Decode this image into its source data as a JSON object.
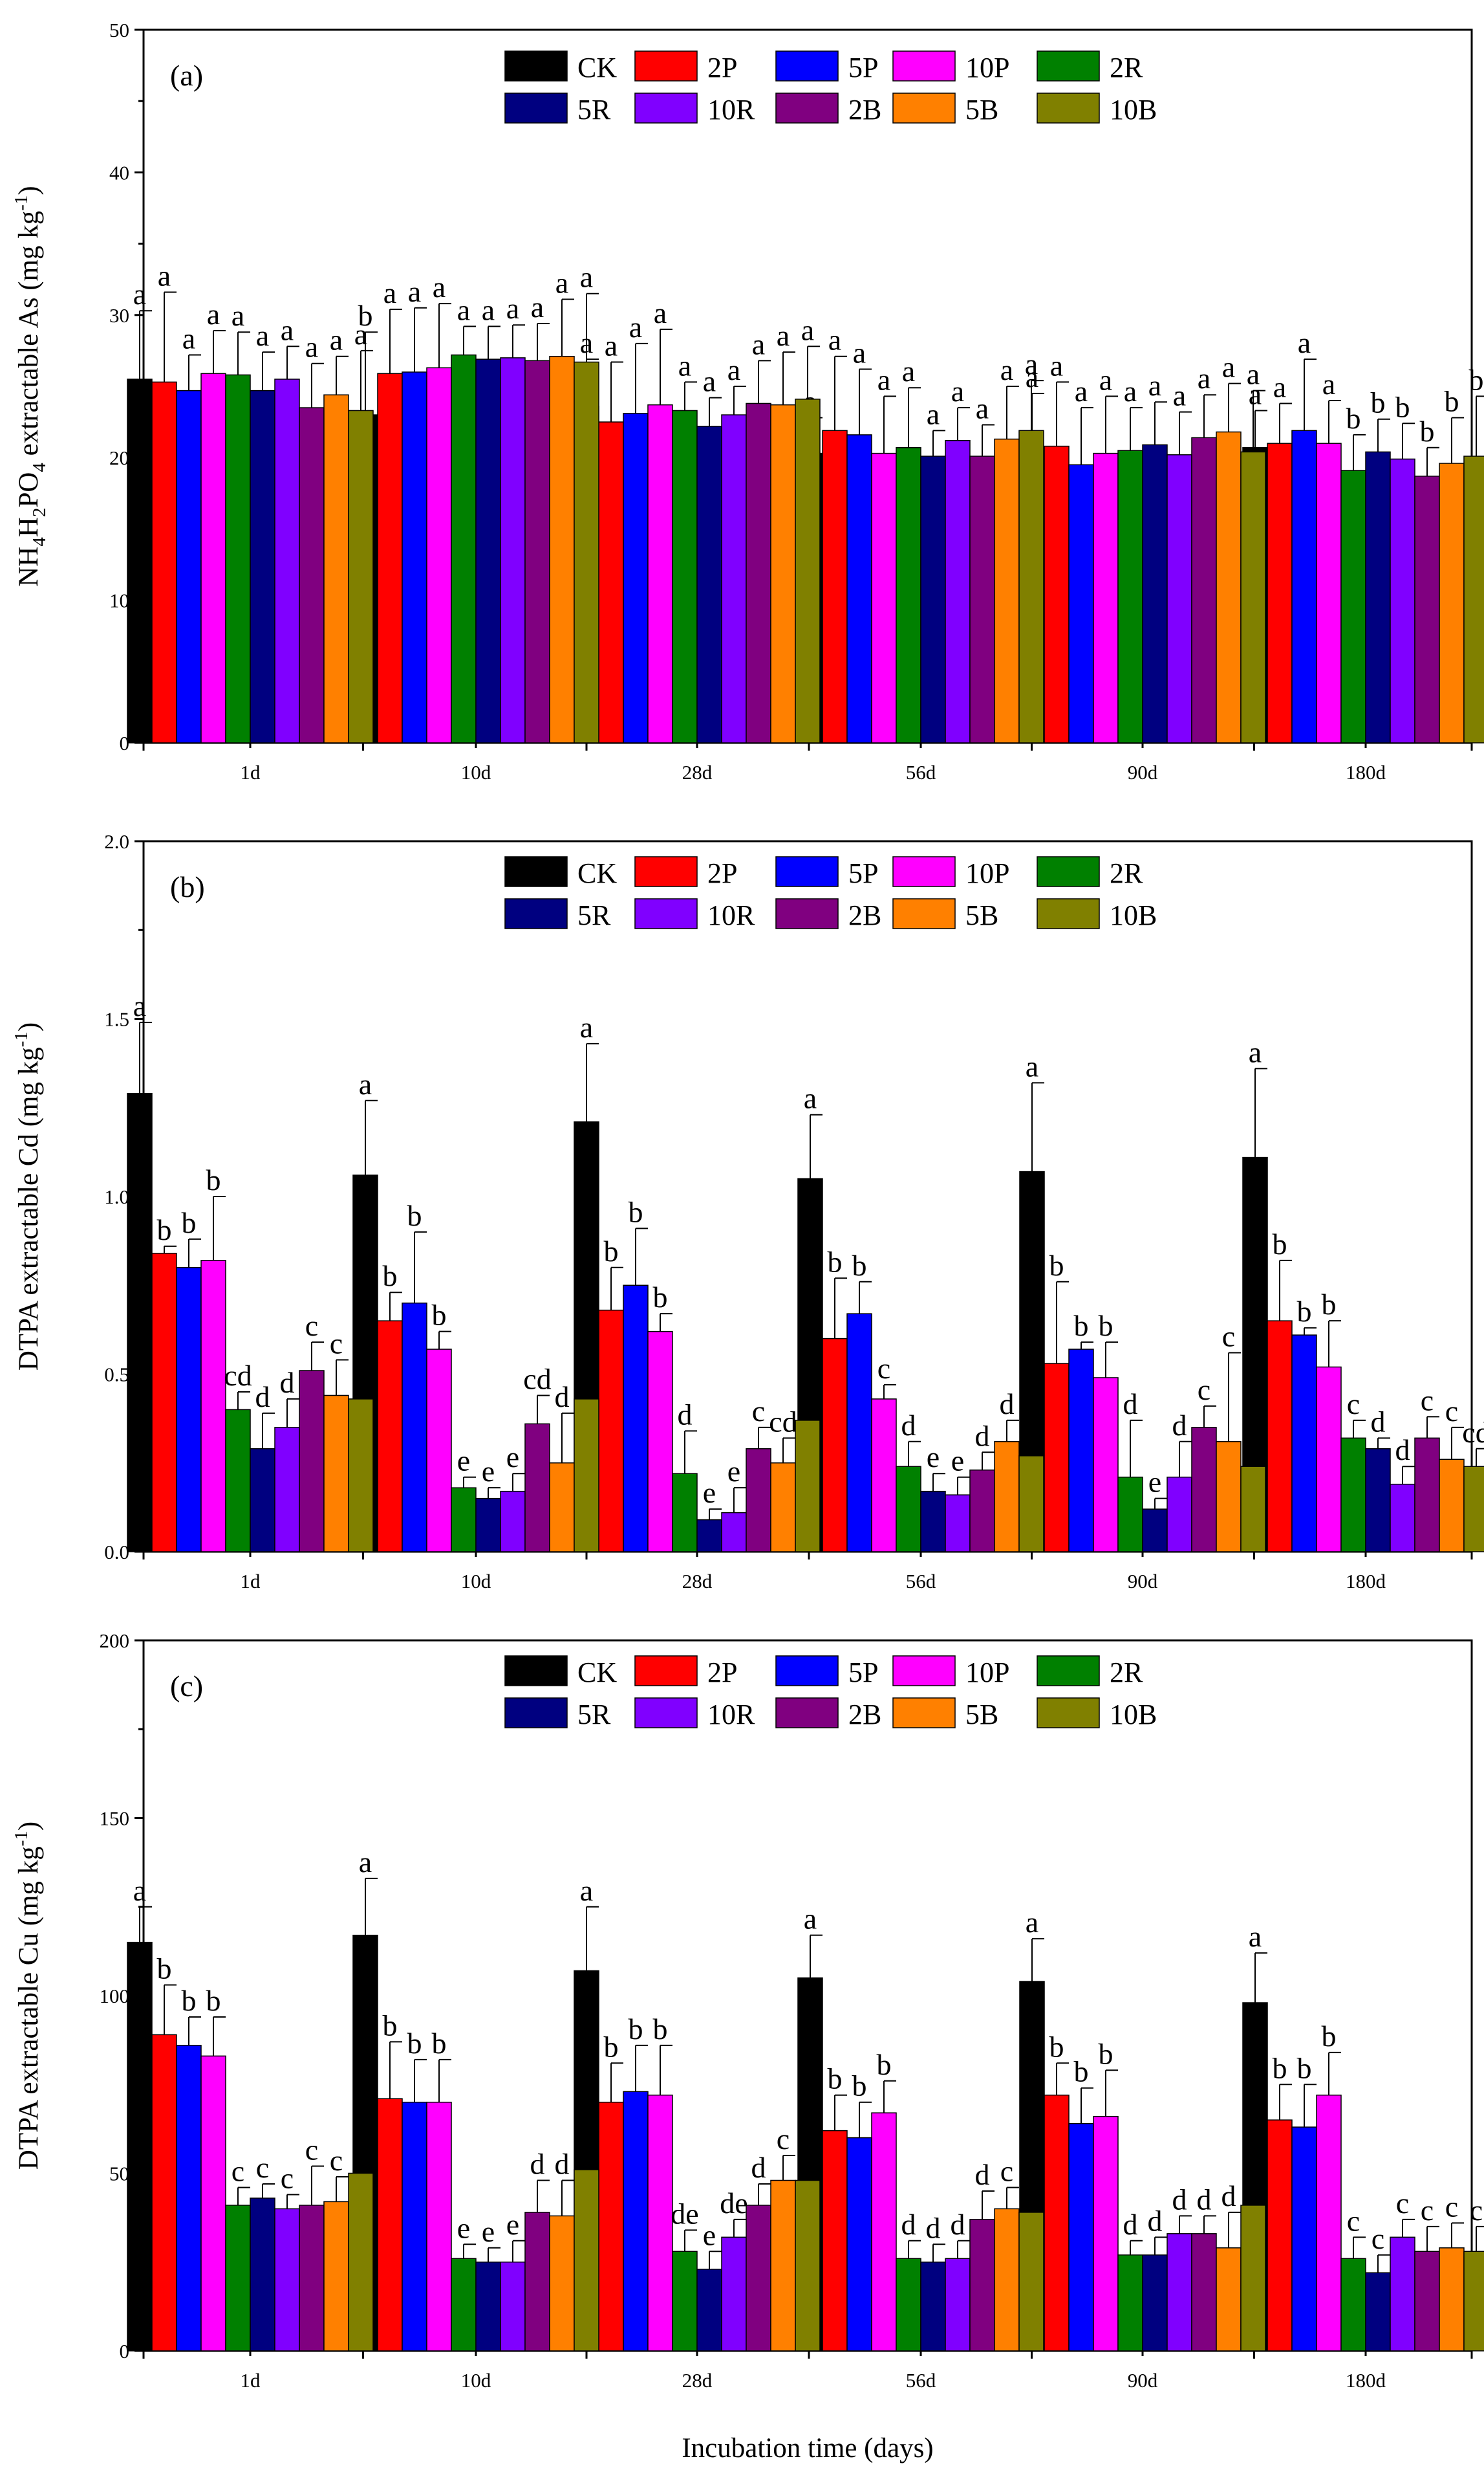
{
  "figure": {
    "xlabel": "Incubation time (days)",
    "categories": [
      "1d",
      "10d",
      "28d",
      "56d",
      "90d",
      "180d"
    ],
    "legend": [
      {
        "name": "CK",
        "color": "#000000"
      },
      {
        "name": "2P",
        "color": "#ff0000"
      },
      {
        "name": "5P",
        "color": "#0000ff"
      },
      {
        "name": "10P",
        "color": "#ff00ff"
      },
      {
        "name": "2R",
        "color": "#008000"
      },
      {
        "name": "5R",
        "color": "#000080"
      },
      {
        "name": "10R",
        "color": "#8000ff"
      },
      {
        "name": "2B",
        "color": "#800080"
      },
      {
        "name": "5B",
        "color": "#ff8000"
      },
      {
        "name": "10B",
        "color": "#808000"
      }
    ]
  },
  "chart_data": [
    {
      "type": "bar",
      "panel_label": "(a)",
      "ylabel": "NH4H2PO4 extractable As (mg kg-1)",
      "ylabel_parts": {
        "pre": "NH",
        "s1": "4",
        "m1": "H",
        "s2": "2",
        "m2": "PO",
        "s3": "4",
        "post": " extractable As (mg kg",
        "sup": "-1",
        "end": ")"
      },
      "ylim": [
        0,
        50
      ],
      "yticks": [
        "0",
        "10",
        "20",
        "30",
        "40",
        "50"
      ],
      "ytick_values": [
        0,
        10,
        20,
        30,
        40,
        50
      ],
      "categories": [
        "1d",
        "10d",
        "28d",
        "56d",
        "90d",
        "180d"
      ],
      "series": [
        {
          "name": "CK",
          "values": [
            25.5,
            23.0,
            23.6,
            20.3,
            19.7,
            20.7
          ],
          "errors": [
            4.8,
            5.8,
            3.3,
            2.5,
            4.8,
            2.6
          ],
          "letters": [
            "a",
            "b",
            "a",
            "a",
            "a",
            "a"
          ]
        },
        {
          "name": "2P",
          "values": [
            25.3,
            25.9,
            22.5,
            21.9,
            20.8,
            21.0
          ],
          "errors": [
            6.3,
            4.5,
            4.2,
            5.2,
            4.5,
            2.8
          ],
          "letters": [
            "a",
            "a",
            "a",
            "a",
            "a",
            "a"
          ]
        },
        {
          "name": "5P",
          "values": [
            24.7,
            26.0,
            23.1,
            21.6,
            19.5,
            21.9
          ],
          "errors": [
            2.5,
            4.5,
            4.9,
            4.6,
            4.0,
            5.0
          ],
          "letters": [
            "a",
            "a",
            "a",
            "a",
            "a",
            "a"
          ]
        },
        {
          "name": "10P",
          "values": [
            25.9,
            26.3,
            23.7,
            20.3,
            20.3,
            21.0
          ],
          "errors": [
            3.0,
            4.5,
            5.3,
            4.0,
            4.0,
            3.0
          ],
          "letters": [
            "a",
            "a",
            "a",
            "a",
            "a",
            "a"
          ]
        },
        {
          "name": "2R",
          "values": [
            25.8,
            27.2,
            23.3,
            20.7,
            20.5,
            19.1
          ],
          "errors": [
            3.0,
            2.0,
            2.0,
            4.2,
            3.0,
            2.5
          ],
          "letters": [
            "a",
            "a",
            "a",
            "a",
            "a",
            "b"
          ]
        },
        {
          "name": "5R",
          "values": [
            24.7,
            26.9,
            22.2,
            20.1,
            20.9,
            20.4
          ],
          "errors": [
            2.7,
            2.3,
            2.0,
            1.8,
            3.0,
            2.3
          ],
          "letters": [
            "a",
            "a",
            "a",
            "a",
            "a",
            "b"
          ]
        },
        {
          "name": "10R",
          "values": [
            25.5,
            27.0,
            23.0,
            21.2,
            20.2,
            19.9
          ],
          "errors": [
            2.3,
            2.3,
            2.0,
            2.3,
            3.0,
            2.5
          ],
          "letters": [
            "a",
            "a",
            "a",
            "a",
            "a",
            "b"
          ]
        },
        {
          "name": "2B",
          "values": [
            23.5,
            26.8,
            23.8,
            20.1,
            21.4,
            18.7
          ],
          "errors": [
            3.1,
            2.6,
            3.0,
            2.2,
            3.0,
            2.0
          ],
          "letters": [
            "a",
            "a",
            "a",
            "a",
            "a",
            "b"
          ]
        },
        {
          "name": "5B",
          "values": [
            24.4,
            27.1,
            23.7,
            21.3,
            21.8,
            19.6
          ],
          "errors": [
            2.7,
            4.0,
            3.7,
            3.7,
            3.4,
            3.2
          ],
          "letters": [
            "a",
            "a",
            "a",
            "a",
            "a",
            "b"
          ]
        },
        {
          "name": "10B",
          "values": [
            23.3,
            26.7,
            24.1,
            21.9,
            20.4,
            20.1
          ],
          "errors": [
            4.2,
            4.8,
            3.7,
            3.5,
            4.3,
            4.2
          ],
          "letters": [
            "a",
            "a",
            "a",
            "a",
            "a",
            "b"
          ]
        }
      ]
    },
    {
      "type": "bar",
      "panel_label": "(b)",
      "ylabel": "DTPA extractable Cd (mg kg-1)",
      "ylabel_parts": {
        "pre": "DTPA extractable Cd (mg kg",
        "sup": "-1",
        "end": ")"
      },
      "ylim": [
        0,
        2.0
      ],
      "yticks": [
        "0.0",
        "0.5",
        "1.0",
        "1.5",
        "2.0"
      ],
      "ytick_values": [
        0,
        0.5,
        1.0,
        1.5,
        2.0
      ],
      "categories": [
        "1d",
        "10d",
        "28d",
        "56d",
        "90d",
        "180d"
      ],
      "series": [
        {
          "name": "CK",
          "values": [
            1.29,
            1.06,
            1.21,
            1.05,
            1.07,
            1.11
          ],
          "errors": [
            0.2,
            0.21,
            0.22,
            0.18,
            0.25,
            0.25
          ],
          "letters": [
            "a",
            "a",
            "a",
            "a",
            "a",
            "a"
          ]
        },
        {
          "name": "2P",
          "values": [
            0.84,
            0.65,
            0.68,
            0.6,
            0.53,
            0.65
          ],
          "errors": [
            0.02,
            0.08,
            0.12,
            0.17,
            0.23,
            0.17
          ],
          "letters": [
            "b",
            "b",
            "b",
            "b",
            "b",
            "b"
          ]
        },
        {
          "name": "5P",
          "values": [
            0.8,
            0.7,
            0.75,
            0.67,
            0.57,
            0.61
          ],
          "errors": [
            0.08,
            0.2,
            0.16,
            0.09,
            0.02,
            0.02
          ],
          "letters": [
            "b",
            "b",
            "b",
            "b",
            "b",
            "b"
          ]
        },
        {
          "name": "10P",
          "values": [
            0.82,
            0.57,
            0.62,
            0.43,
            0.49,
            0.52
          ],
          "errors": [
            0.18,
            0.05,
            0.05,
            0.04,
            0.1,
            0.13
          ],
          "letters": [
            "b",
            "b",
            "b",
            "c",
            "b",
            "b"
          ]
        },
        {
          "name": "2R",
          "values": [
            0.4,
            0.18,
            0.22,
            0.24,
            0.21,
            0.32
          ],
          "errors": [
            0.05,
            0.03,
            0.12,
            0.07,
            0.16,
            0.05
          ],
          "letters": [
            "cd",
            "e",
            "d",
            "d",
            "d",
            "c"
          ]
        },
        {
          "name": "5R",
          "values": [
            0.29,
            0.15,
            0.09,
            0.17,
            0.12,
            0.29
          ],
          "errors": [
            0.1,
            0.03,
            0.03,
            0.05,
            0.03,
            0.03
          ],
          "letters": [
            "d",
            "e",
            "e",
            "e",
            "e",
            "d"
          ]
        },
        {
          "name": "10R",
          "values": [
            0.35,
            0.17,
            0.11,
            0.16,
            0.21,
            0.19
          ],
          "errors": [
            0.08,
            0.05,
            0.07,
            0.05,
            0.1,
            0.05
          ],
          "letters": [
            "d",
            "e",
            "e",
            "e",
            "d",
            "d"
          ]
        },
        {
          "name": "2B",
          "values": [
            0.51,
            0.36,
            0.29,
            0.23,
            0.35,
            0.32
          ],
          "errors": [
            0.08,
            0.08,
            0.06,
            0.05,
            0.06,
            0.06
          ],
          "letters": [
            "c",
            "cd",
            "c",
            "d",
            "c",
            "c"
          ]
        },
        {
          "name": "5B",
          "values": [
            0.44,
            0.25,
            0.25,
            0.31,
            0.31,
            0.26
          ],
          "errors": [
            0.1,
            0.14,
            0.07,
            0.06,
            0.25,
            0.09
          ],
          "letters": [
            "c",
            "d",
            "cd",
            "d",
            "c",
            "c"
          ]
        },
        {
          "name": "10B",
          "values": [
            0.43,
            0.43,
            0.37,
            0.27,
            0.24,
            0.24
          ],
          "errors": [
            0.07,
            0.06,
            0.09,
            0.1,
            0.11,
            0.05
          ],
          "letters": [
            "c",
            "c",
            "c",
            "d",
            "d",
            "cd"
          ]
        }
      ]
    },
    {
      "type": "bar",
      "panel_label": "(c)",
      "ylabel": "DTPA extractable Cu (mg kg-1)",
      "ylabel_parts": {
        "pre": "DTPA extractable Cu (mg kg",
        "sup": "-1",
        "end": ")"
      },
      "ylim": [
        0,
        200
      ],
      "yticks": [
        "0",
        "50",
        "100",
        "150",
        "200"
      ],
      "ytick_values": [
        0,
        50,
        100,
        150,
        200
      ],
      "categories": [
        "1d",
        "10d",
        "28d",
        "56d",
        "90d",
        "180d"
      ],
      "series": [
        {
          "name": "CK",
          "values": [
            115,
            117,
            107,
            105,
            104,
            98
          ],
          "errors": [
            10,
            16,
            18,
            12,
            12,
            14
          ],
          "letters": [
            "a",
            "a",
            "a",
            "a",
            "a",
            "a"
          ]
        },
        {
          "name": "2P",
          "values": [
            89,
            71,
            70,
            62,
            72,
            65
          ],
          "errors": [
            14,
            16,
            11,
            10,
            9,
            10
          ],
          "letters": [
            "b",
            "b",
            "b",
            "b",
            "b",
            "b"
          ]
        },
        {
          "name": "5P",
          "values": [
            86,
            70,
            73,
            60,
            64,
            63
          ],
          "errors": [
            8,
            12,
            13,
            10,
            10,
            12
          ],
          "letters": [
            "b",
            "b",
            "b",
            "b",
            "b",
            "b"
          ]
        },
        {
          "name": "10P",
          "values": [
            83,
            70,
            72,
            67,
            66,
            72
          ],
          "errors": [
            11,
            12,
            14,
            9,
            13,
            12
          ],
          "letters": [
            "b",
            "b",
            "b",
            "b",
            "b",
            "b"
          ]
        },
        {
          "name": "2R",
          "values": [
            41,
            26,
            28,
            26,
            27,
            26
          ],
          "errors": [
            5,
            4,
            6,
            5,
            4,
            6
          ],
          "letters": [
            "c",
            "e",
            "de",
            "d",
            "d",
            "c"
          ]
        },
        {
          "name": "5R",
          "values": [
            43,
            25,
            23,
            25,
            27,
            22
          ],
          "errors": [
            4,
            4,
            5,
            5,
            5,
            5
          ],
          "letters": [
            "c",
            "e",
            "e",
            "d",
            "d",
            "c"
          ]
        },
        {
          "name": "10R",
          "values": [
            40,
            25,
            32,
            26,
            33,
            32
          ],
          "errors": [
            4,
            6,
            5,
            5,
            5,
            5
          ],
          "letters": [
            "c",
            "e",
            "de",
            "d",
            "d",
            "c"
          ]
        },
        {
          "name": "2B",
          "values": [
            41,
            39,
            41,
            37,
            33,
            28
          ],
          "errors": [
            11,
            9,
            6,
            8,
            5,
            7
          ],
          "letters": [
            "c",
            "d",
            "d",
            "d",
            "d",
            "c"
          ]
        },
        {
          "name": "5B",
          "values": [
            42,
            38,
            48,
            40,
            29,
            29
          ],
          "errors": [
            7,
            10,
            7,
            6,
            10,
            7
          ],
          "letters": [
            "c",
            "d",
            "c",
            "c",
            "d",
            "c"
          ]
        },
        {
          "name": "10B",
          "values": [
            50,
            51,
            48,
            39,
            41,
            28
          ],
          "errors": [
            7,
            5,
            5,
            6,
            6,
            7
          ],
          "letters": [
            "c",
            "c",
            "c",
            "c",
            "c",
            "c"
          ]
        }
      ]
    }
  ]
}
